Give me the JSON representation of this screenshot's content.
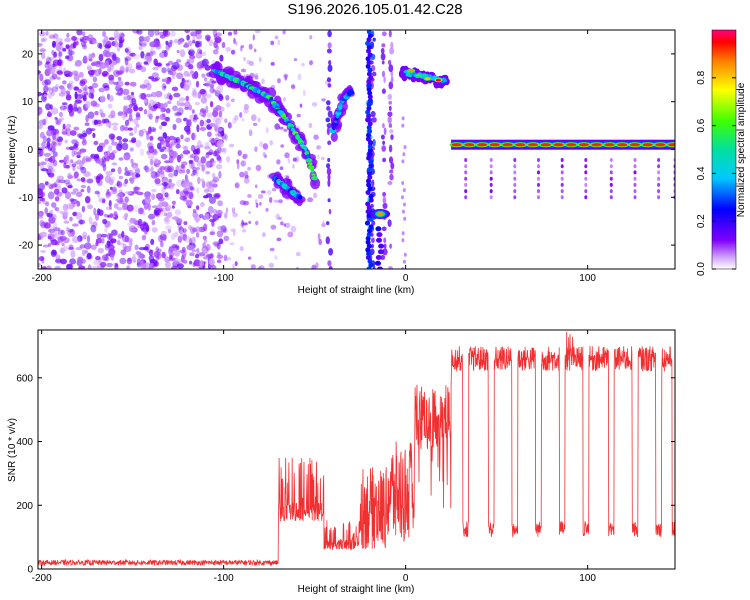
{
  "title": "S196.2026.105.01.42.C28",
  "spectrogram": {
    "type": "heatmap",
    "xlabel": "Height of straight line (km)",
    "ylabel": "Frequency (Hz)",
    "xlim": [
      -202,
      148
    ],
    "ylim": [
      -25,
      25
    ],
    "xticks": [
      -200,
      -100,
      0,
      100
    ],
    "yticks": [
      -20,
      -10,
      0,
      10,
      20
    ],
    "colorbar": {
      "label": "Normalized spectral amplitude",
      "range": [
        0,
        1
      ],
      "ticks": [
        0.0,
        0.2,
        0.4,
        0.6,
        0.8
      ]
    },
    "features": [
      {
        "name": "noise-region",
        "x": [
          -202,
          -100
        ],
        "y": [
          -25,
          25
        ],
        "amplitude": 0.1
      },
      {
        "name": "descending-track",
        "points": [
          [
            -105,
            16.5
          ],
          [
            -90,
            14
          ],
          [
            -75,
            11
          ],
          [
            -65,
            6
          ],
          [
            -55,
            0
          ],
          [
            -50,
            -6
          ]
        ],
        "amplitude": 0.55
      },
      {
        "name": "lower-branch",
        "points": [
          [
            -72,
            -6
          ],
          [
            -62,
            -9
          ],
          [
            -58,
            -10
          ]
        ],
        "amplitude": 0.4
      },
      {
        "name": "mid-cluster",
        "points": [
          [
            -40,
            4
          ],
          [
            -35,
            10
          ],
          [
            -30,
            12
          ]
        ],
        "amplitude": 0.35
      },
      {
        "name": "low-blob",
        "points": [
          [
            -14,
            -13.5
          ]
        ],
        "amplitude": 0.85
      },
      {
        "name": "upper-band",
        "points": [
          [
            0,
            16
          ],
          [
            10,
            15
          ],
          [
            20,
            14.5
          ]
        ],
        "amplitude": 0.9
      },
      {
        "name": "steady-band",
        "x": [
          25,
          148
        ],
        "y": [
          1,
          1
        ],
        "amplitude": 0.95
      }
    ]
  },
  "snr_plot": {
    "type": "line",
    "xlabel": "Height of straight line (km)",
    "ylabel": "SNR (10 * v/v)",
    "xlim": [
      -202,
      148
    ],
    "ylim": [
      0,
      750
    ],
    "xticks": [
      -200,
      -100,
      0,
      100
    ],
    "yticks": [
      0,
      200,
      400,
      600
    ],
    "color": "#f03030",
    "segments": [
      {
        "x_start": -202,
        "x_end": -70,
        "baseline": 20,
        "amplitude": 8
      },
      {
        "x_start": -70,
        "x_end": -45,
        "baseline": 150,
        "amplitude": 80
      },
      {
        "x_start": -45,
        "x_end": -25,
        "baseline": 60,
        "amplitude": 40
      },
      {
        "x_start": -25,
        "x_end": -10,
        "baseline": 200,
        "amplitude": 150
      },
      {
        "x_start": -10,
        "x_end": 5,
        "baseline": 250,
        "amplitude": 120
      },
      {
        "x_start": 5,
        "x_end": 25,
        "baseline": 480,
        "amplitude": 100
      },
      {
        "x_start": 25,
        "x_end": 148,
        "baseline": 660,
        "amplitude": 40
      }
    ],
    "dips": [
      -5,
      9,
      20,
      33,
      47,
      60,
      73,
      86,
      99,
      113,
      126,
      139,
      148
    ],
    "dip_level": 130
  }
}
